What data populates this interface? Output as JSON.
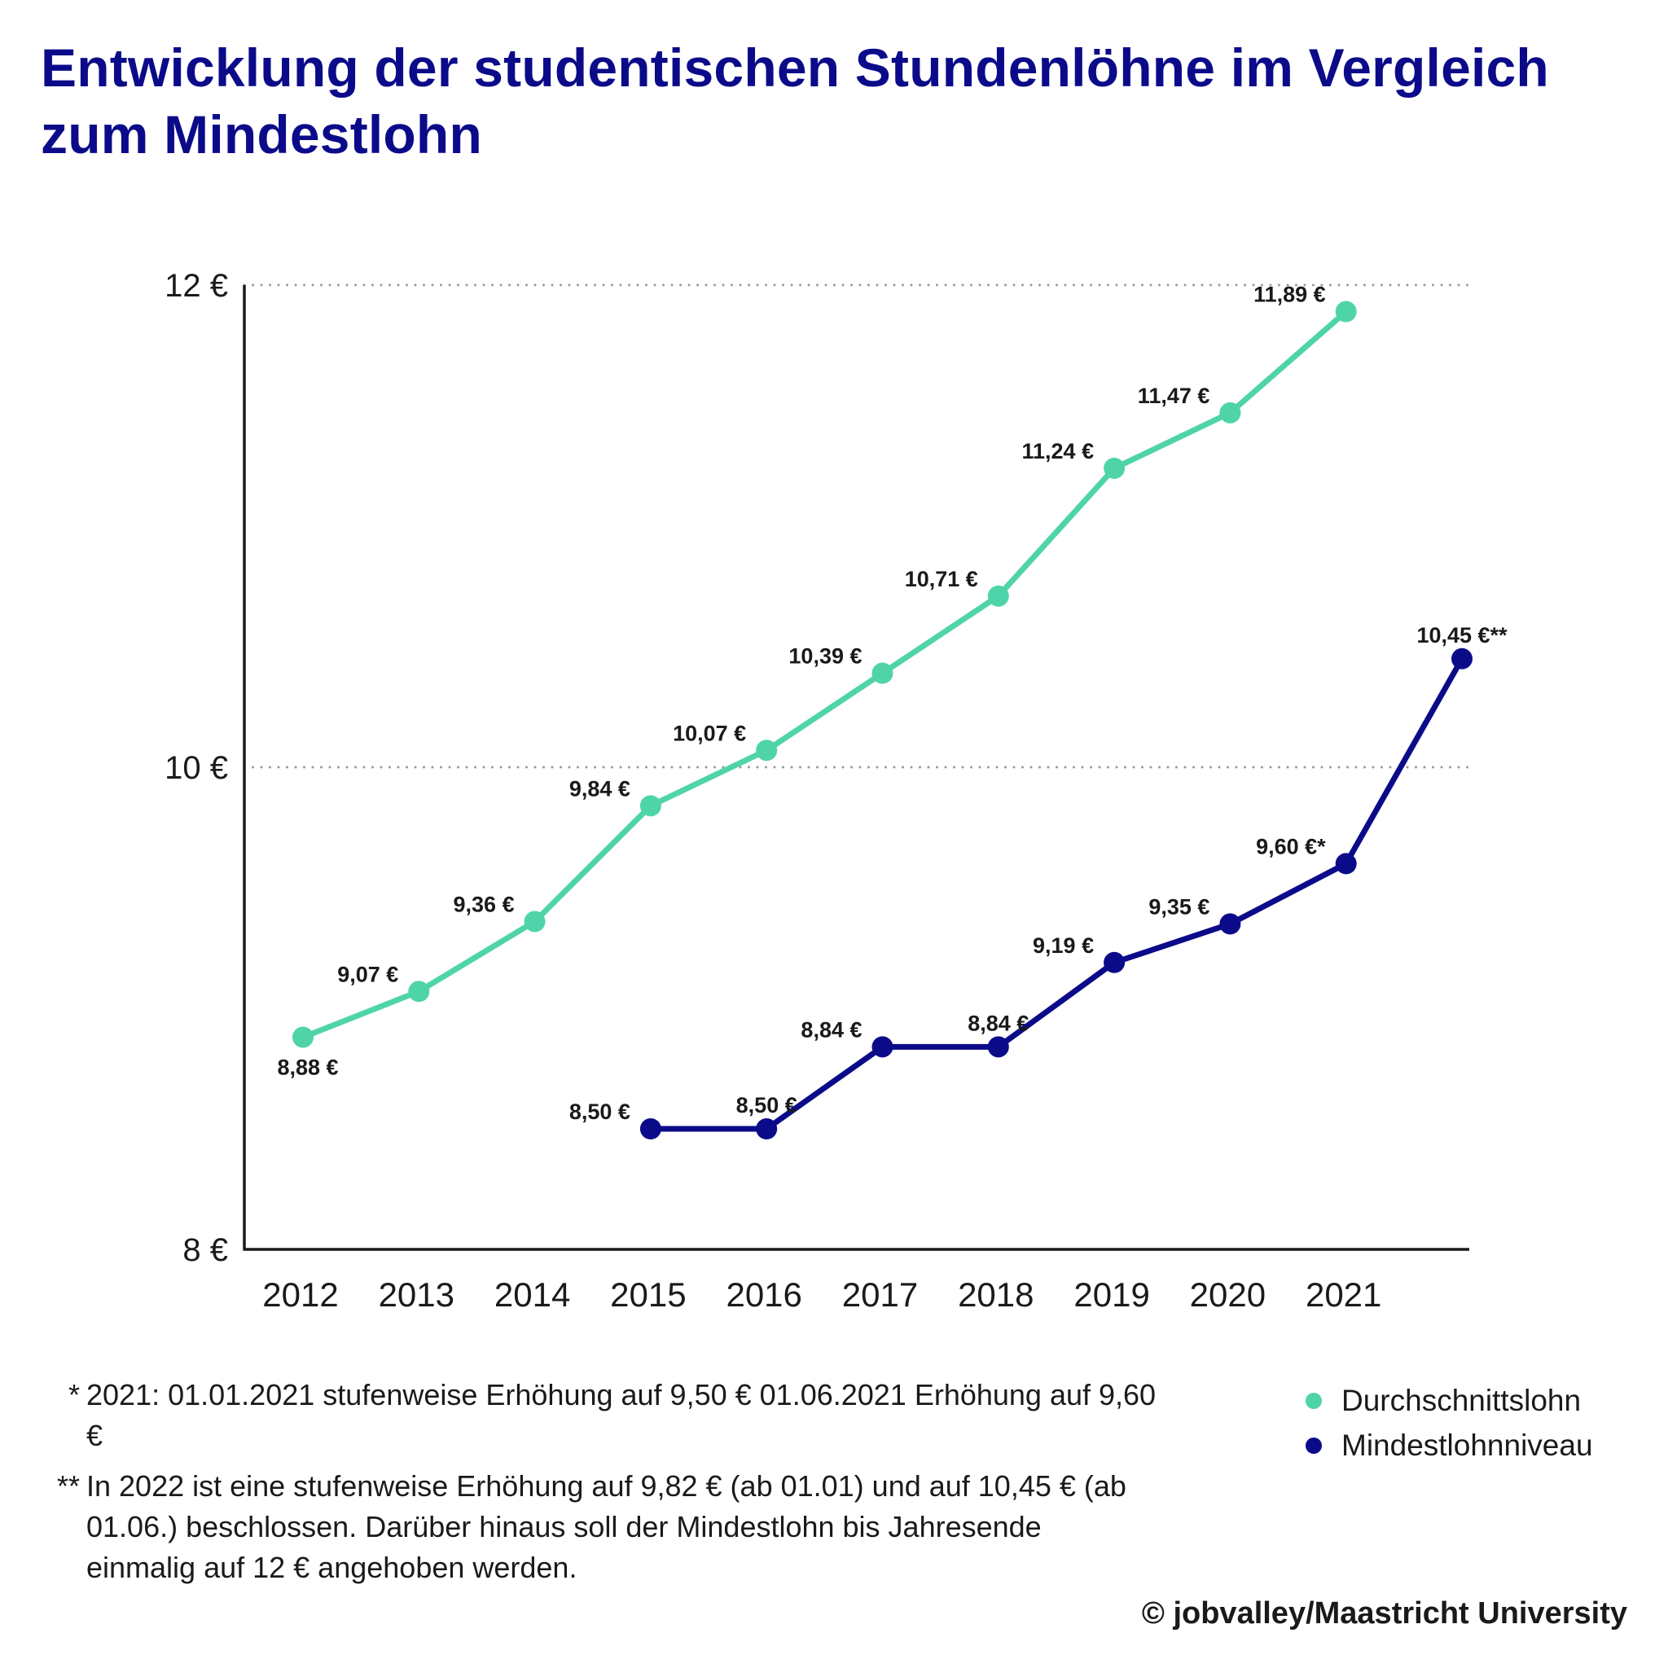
{
  "title": {
    "line1": "Entwicklung der studentischen Stundenlöhne im Vergleich",
    "line2": "zum Mindestlohn"
  },
  "colors": {
    "title": "#0b0b8a",
    "durchschnittslohn": "#4fd4a9",
    "mindestlohnniveau": "#0b0b8a",
    "axis": "#1a1a1a",
    "grid": "#999999"
  },
  "chart_data": {
    "type": "line",
    "title": "Entwicklung der studentischen Stundenlöhne im Vergleich zum Mindestlohn",
    "xlabel": "",
    "ylabel": "",
    "x": [
      2012,
      2013,
      2014,
      2015,
      2016,
      2017,
      2018,
      2019,
      2020,
      2021,
      2022
    ],
    "x_tick_labels": [
      "2012",
      "2013",
      "2014",
      "2015",
      "2016",
      "2017",
      "2018",
      "2019",
      "2020",
      "2021"
    ],
    "ylim": [
      8,
      12
    ],
    "y_ticks": [
      8,
      10,
      12
    ],
    "y_tick_labels": [
      "8 €",
      "10 €",
      "12 €"
    ],
    "grid": "horizontal dotted at 10 € and 12 €",
    "legend_position": "bottom-right",
    "series": [
      {
        "name": "Durchschnittslohn",
        "color": "#4fd4a9",
        "points": [
          {
            "x": 2012,
            "y": 8.88,
            "label": "8,88 €",
            "label_pos": "below"
          },
          {
            "x": 2013,
            "y": 9.07,
            "label": "9,07 €",
            "label_pos": "left"
          },
          {
            "x": 2014,
            "y": 9.36,
            "label": "9,36 €",
            "label_pos": "left"
          },
          {
            "x": 2015,
            "y": 9.84,
            "label": "9,84 €",
            "label_pos": "left"
          },
          {
            "x": 2016,
            "y": 10.07,
            "label": "10,07 €",
            "label_pos": "left"
          },
          {
            "x": 2017,
            "y": 10.39,
            "label": "10,39 €",
            "label_pos": "left"
          },
          {
            "x": 2018,
            "y": 10.71,
            "label": "10,71 €",
            "label_pos": "left"
          },
          {
            "x": 2019,
            "y": 11.24,
            "label": "11,24 €",
            "label_pos": "left"
          },
          {
            "x": 2020,
            "y": 11.47,
            "label": "11,47 €",
            "label_pos": "left"
          },
          {
            "x": 2021,
            "y": 11.89,
            "label": "11,89 €",
            "label_pos": "left"
          }
        ]
      },
      {
        "name": "Mindestlohnniveau",
        "color": "#0b0b8a",
        "points": [
          {
            "x": 2015,
            "y": 8.5,
            "label": "8,50 €",
            "label_pos": "left"
          },
          {
            "x": 2016,
            "y": 8.5,
            "label": "8,50 €",
            "label_pos": "above"
          },
          {
            "x": 2017,
            "y": 8.84,
            "label": "8,84 €",
            "label_pos": "left"
          },
          {
            "x": 2018,
            "y": 8.84,
            "label": "8,84 €",
            "label_pos": "above"
          },
          {
            "x": 2019,
            "y": 9.19,
            "label": "9,19 €",
            "label_pos": "left"
          },
          {
            "x": 2020,
            "y": 9.35,
            "label": "9,35 €",
            "label_pos": "left"
          },
          {
            "x": 2021,
            "y": 9.6,
            "label": "9,60 €*",
            "label_pos": "left"
          },
          {
            "x": 2022,
            "y": 10.45,
            "label": "10,45 €**",
            "label_pos": "above"
          }
        ]
      }
    ]
  },
  "legend": [
    {
      "label": "Durchschnittslohn",
      "color": "#4fd4a9"
    },
    {
      "label": "Mindestlohnniveau",
      "color": "#0b0b8a"
    }
  ],
  "footnotes": [
    {
      "mark": "*",
      "text": "2021: 01.01.2021 stufenweise Erhöhung auf 9,50 € 01.06.2021 Erhöhung auf 9,60 €"
    },
    {
      "mark": "**",
      "text": "In 2022 ist eine stufenweise Erhöhung auf 9,82 € (ab 01.01) und auf 10,45 € (ab 01.06.) beschlossen. Darüber hinaus soll der Mindestlohn bis Jahresende einmalig auf 12 € angehoben werden."
    }
  ],
  "credit": "© jobvalley/Maastricht University"
}
